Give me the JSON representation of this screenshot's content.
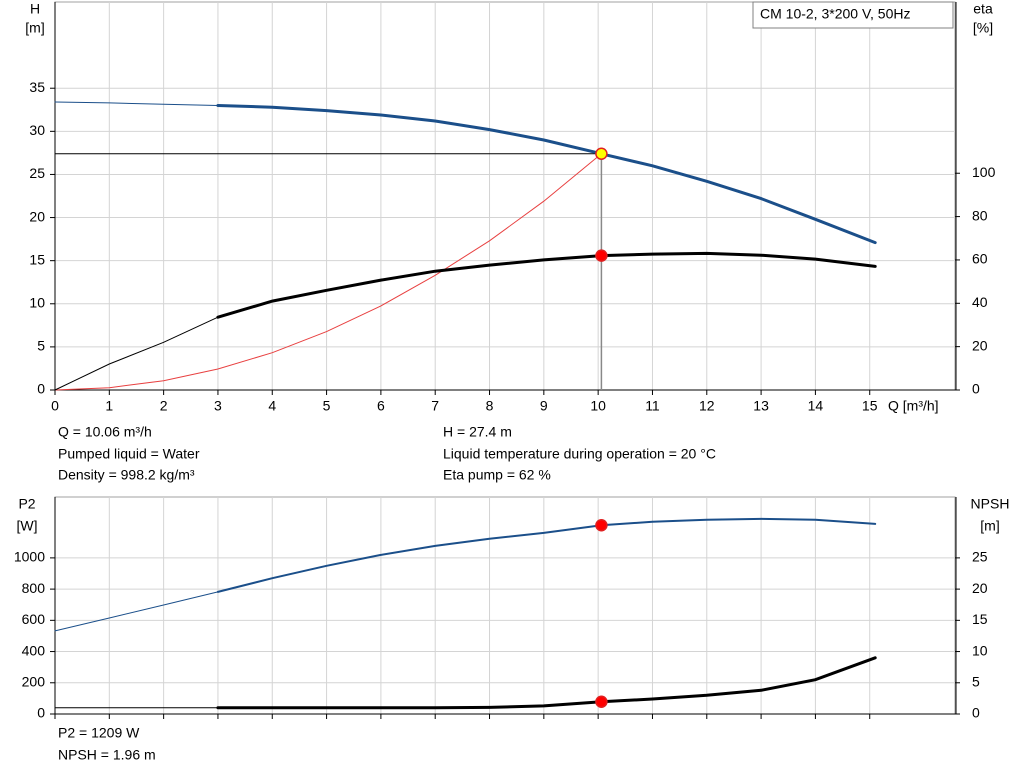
{
  "chart_data": [
    {
      "type": "line",
      "title": "CM 10-2, 3*200 V, 50Hz",
      "ylabel": "H",
      "yunit": "[m]",
      "y2label": "eta",
      "y2unit": "[%]",
      "xlabel": "Q [m³/h]",
      "xlim": [
        0,
        16.57
      ],
      "xticks": [
        0,
        1,
        2,
        3,
        4,
        5,
        6,
        7,
        8,
        9,
        10,
        11,
        12,
        13,
        14,
        15
      ],
      "xtick_labels": true,
      "ylim": [
        0,
        45
      ],
      "yticks": [
        0,
        5,
        10,
        15,
        20,
        25,
        30,
        35
      ],
      "y2lim": [
        0,
        179
      ],
      "y2ticks": [
        0,
        20,
        40,
        60,
        80,
        100
      ],
      "grid": true,
      "series": [
        {
          "color": "#1b4f8a",
          "width": 1,
          "x": [
            0,
            1,
            2,
            3
          ],
          "values": [
            33.4,
            33.3,
            33.15,
            33.0
          ]
        },
        {
          "color": "#1b4f8a",
          "width": 3,
          "x": [
            3,
            4,
            5,
            6,
            7,
            8,
            9,
            10,
            10.06,
            11,
            12,
            13,
            14,
            15.1
          ],
          "values": [
            33.0,
            32.8,
            32.4,
            31.9,
            31.2,
            30.2,
            29.0,
            27.5,
            27.4,
            26.0,
            24.2,
            22.2,
            19.8,
            17.1
          ]
        },
        {
          "color": "#e84040",
          "width": 1,
          "x": [
            0,
            1,
            2,
            3,
            4,
            5,
            6,
            7,
            8,
            9,
            10.06
          ],
          "values": [
            0,
            0.27,
            1.08,
            2.44,
            4.33,
            6.77,
            9.75,
            13.3,
            17.3,
            21.9,
            27.4
          ]
        },
        {
          "color": "#000000",
          "width": 1,
          "axis": "y2",
          "x": [
            0,
            1,
            2,
            3
          ],
          "values": [
            0,
            12,
            22,
            33.6
          ]
        },
        {
          "color": "#000000",
          "width": 3,
          "axis": "y2",
          "x": [
            3,
            4,
            5,
            6,
            7,
            8,
            9,
            10.06,
            11,
            12,
            13,
            14,
            15.1
          ],
          "values": [
            33.6,
            41,
            46,
            50.7,
            54.8,
            57.6,
            60,
            62,
            62.7,
            63,
            62.2,
            60.4,
            57
          ]
        }
      ],
      "operating_point": {
        "x": 10.06,
        "guides": true,
        "points": [
          {
            "value": 27.4,
            "color": "#ffff00"
          },
          {
            "value": 62,
            "axis": "y2",
            "color": "#ff0000"
          }
        ]
      },
      "annotations": [
        "Q = 10.06 m³/h",
        "Pumped liquid = Water",
        "Density = 998.2 kg/m³",
        "H = 27.4 m",
        "Liquid temperature during operation = 20 °C",
        "Eta pump = 62 %"
      ]
    },
    {
      "type": "line",
      "ylabel": "P2",
      "yunit": "[W]",
      "y2label": "NPSH",
      "y2unit": "[m]",
      "xlim": [
        0,
        16.57
      ],
      "xticks": [
        0,
        1,
        2,
        3,
        4,
        5,
        6,
        7,
        8,
        9,
        10,
        11,
        12,
        13,
        14,
        15
      ],
      "xtick_labels": false,
      "ylim": [
        0,
        1390
      ],
      "yticks": [
        0,
        200,
        400,
        600,
        800,
        1000
      ],
      "y2lim": [
        0,
        34.75
      ],
      "y2ticks": [
        0,
        5,
        10,
        15,
        20,
        25
      ],
      "grid": true,
      "series": [
        {
          "color": "#1b4f8a",
          "width": 1,
          "x": [
            0,
            1,
            2,
            3
          ],
          "values": [
            532,
            615,
            698,
            782
          ]
        },
        {
          "color": "#1b4f8a",
          "width": 2,
          "x": [
            3,
            4,
            5,
            6,
            7,
            8,
            9,
            10.06,
            11,
            12,
            13,
            14,
            15.1
          ],
          "values": [
            782,
            870,
            949,
            1019,
            1077,
            1122,
            1160,
            1209,
            1231,
            1244,
            1250,
            1244,
            1218
          ]
        },
        {
          "color": "#000000",
          "width": 1,
          "axis": "y2",
          "x": [
            0,
            1,
            2,
            3
          ],
          "values": [
            1.0,
            1.0,
            1.0,
            1.0
          ]
        },
        {
          "color": "#000000",
          "width": 3,
          "axis": "y2",
          "x": [
            3,
            4,
            5,
            6,
            7,
            8,
            9,
            10.06,
            11,
            12,
            13,
            14,
            15.1
          ],
          "values": [
            1.0,
            1.0,
            1.0,
            1.0,
            1.0,
            1.05,
            1.3,
            1.96,
            2.4,
            3.0,
            3.8,
            5.5,
            9.0
          ]
        }
      ],
      "operating_point": {
        "x": 10.06,
        "guides": false,
        "points": [
          {
            "value": 1209,
            "color": "#ff0000"
          },
          {
            "value": 1.96,
            "axis": "y2",
            "color": "#ff0000"
          }
        ]
      },
      "annotations": [
        "P2 = 1209 W",
        "NPSH = 1.96 m"
      ]
    }
  ]
}
